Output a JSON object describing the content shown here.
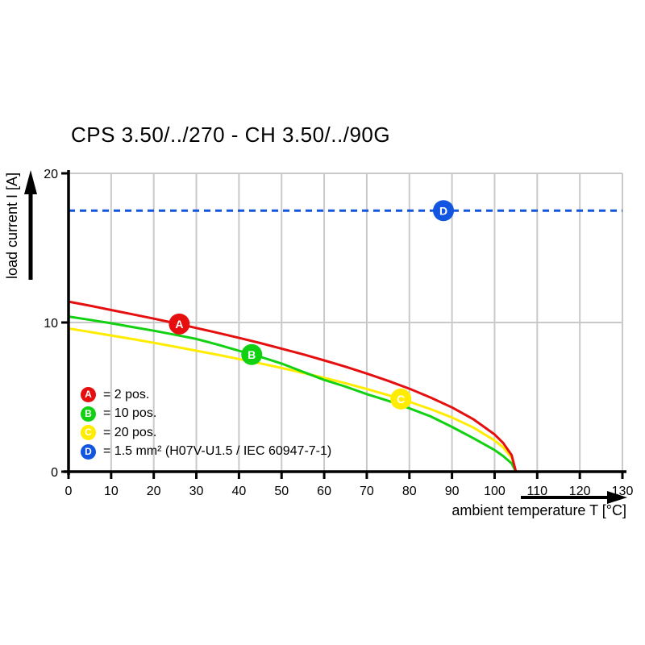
{
  "title": "CPS 3.50/../270 - CH 3.50/../90G",
  "chart_data": {
    "type": "line",
    "title": "CPS 3.50/../270 - CH 3.50/../90G",
    "xlabel": "ambient temperature T [°C]",
    "ylabel": "load current I [A]",
    "xlim": [
      0,
      130
    ],
    "ylim": [
      0,
      20
    ],
    "x_ticks": [
      0,
      10,
      20,
      30,
      40,
      50,
      60,
      70,
      80,
      90,
      100,
      110,
      120,
      130
    ],
    "y_ticks": [
      0,
      10,
      20
    ],
    "grid": true,
    "legend_position": "inside-bottom-left",
    "colors": {
      "grid": "#c9c9c9",
      "axis": "#000000",
      "background": "#ffffff"
    },
    "x_samples": [
      0,
      5,
      10,
      15,
      20,
      25,
      30,
      35,
      40,
      45,
      50,
      55,
      60,
      65,
      70,
      75,
      80,
      85,
      90,
      95,
      100,
      102,
      104,
      105
    ],
    "series": [
      {
        "name": "C",
        "label": "20 pos.",
        "color": "#ffec00",
        "y": [
          9.6,
          9.37,
          9.13,
          8.89,
          8.64,
          8.38,
          8.11,
          7.84,
          7.55,
          7.26,
          6.95,
          6.62,
          6.29,
          5.93,
          5.54,
          5.13,
          4.68,
          4.19,
          3.63,
          2.96,
          2.09,
          1.63,
          0.94,
          0
        ],
        "marker": {
          "letter": "C",
          "x": 78,
          "y": 4.87
        }
      },
      {
        "name": "B",
        "label": "10 pos.",
        "color": "#12d112",
        "y": [
          10.4,
          10.18,
          9.95,
          9.7,
          9.45,
          9.18,
          8.9,
          8.52,
          8.1,
          7.7,
          7.25,
          6.7,
          6.15,
          5.7,
          5.2,
          4.75,
          4.25,
          3.7,
          3.0,
          2.25,
          1.45,
          1.05,
          0.55,
          0
        ],
        "marker": {
          "letter": "B",
          "x": 43,
          "y": 7.85
        }
      },
      {
        "name": "A",
        "label": "2 pos.",
        "color": "#e60f0f",
        "y": [
          11.4,
          11.13,
          10.84,
          10.55,
          10.26,
          9.95,
          9.63,
          9.31,
          8.97,
          8.62,
          8.25,
          7.87,
          7.46,
          7.04,
          6.58,
          6.09,
          5.56,
          4.97,
          4.31,
          3.52,
          2.49,
          1.93,
          1.11,
          0
        ],
        "marker": {
          "letter": "A",
          "x": 26,
          "y": 9.9
        }
      }
    ],
    "rated_line": {
      "name": "D",
      "label": "1.5 mm² (H07V-U1.5 / IEC 60947-7-1)",
      "color": "#1155e0",
      "value": 17.5,
      "dash": [
        8,
        6
      ],
      "marker": {
        "letter": "D",
        "x": 88,
        "y": 17.5
      }
    },
    "legend": [
      {
        "letter": "A",
        "color": "#e60f0f",
        "label": "= 2 pos."
      },
      {
        "letter": "B",
        "color": "#12d112",
        "label": "= 10 pos."
      },
      {
        "letter": "C",
        "color": "#ffec00",
        "label": "= 20 pos."
      },
      {
        "letter": "D",
        "color": "#1155e0",
        "label": "= 1.5 mm² (H07V-U1.5 / IEC 60947-7-1)"
      }
    ]
  }
}
